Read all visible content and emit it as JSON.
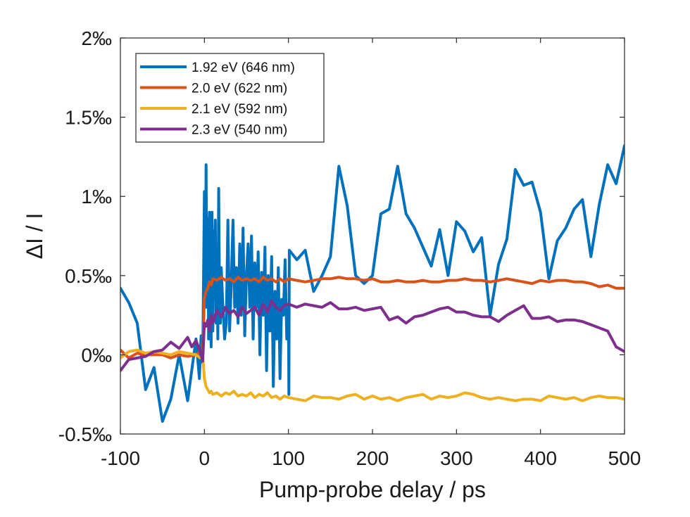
{
  "chart_data": {
    "type": "line",
    "title": "",
    "xlabel": "Pump-probe delay / ps",
    "ylabel": "ΔI / I",
    "xlim": [
      -100,
      500
    ],
    "ylim": [
      -0.5,
      2
    ],
    "xticks": [
      -100,
      0,
      100,
      200,
      300,
      400,
      500
    ],
    "xtick_labels": [
      "-100",
      "0",
      "100",
      "200",
      "300",
      "400",
      "500"
    ],
    "yticks": [
      -0.5,
      0,
      0.5,
      1,
      1.5,
      2
    ],
    "ytick_labels": [
      "-0.5‰",
      "0‰",
      "0.5‰",
      "1‰",
      "1.5‰",
      "2‰"
    ],
    "grid": false,
    "legend_position": "top-left",
    "series": [
      {
        "name": "1.92 eV (646 nm)",
        "color": "#0072BD",
        "x": [
          -100,
          -90,
          -80,
          -70,
          -60,
          -50,
          -40,
          -30,
          -20,
          -10,
          -6,
          -4,
          -2,
          0,
          1,
          2,
          3,
          4,
          5,
          6,
          7,
          8,
          9,
          10,
          11,
          12,
          13,
          14,
          15,
          16,
          17,
          18,
          19,
          20,
          22,
          24,
          26,
          28,
          30,
          32,
          34,
          36,
          38,
          40,
          42,
          44,
          46,
          48,
          50,
          52,
          54,
          56,
          58,
          60,
          62,
          64,
          66,
          68,
          70,
          72,
          74,
          76,
          78,
          80,
          82,
          84,
          86,
          88,
          90,
          92,
          94,
          96,
          98,
          100,
          100.5,
          101,
          110,
          120,
          130,
          140,
          150,
          160,
          170,
          180,
          190,
          200,
          210,
          220,
          230,
          240,
          250,
          260,
          270,
          280,
          290,
          300,
          310,
          320,
          330,
          340,
          350,
          360,
          370,
          380,
          390,
          400,
          410,
          420,
          430,
          440,
          450,
          460,
          470,
          480,
          490,
          500
        ],
        "values": [
          0.42,
          0.33,
          0.2,
          -0.22,
          -0.08,
          -0.42,
          -0.28,
          0.0,
          -0.29,
          0.1,
          -0.15,
          0.12,
          -0.05,
          1.03,
          0.3,
          1.2,
          0.3,
          0.86,
          0.1,
          0.9,
          0.4,
          0.05,
          0.9,
          0.15,
          0.78,
          0.6,
          0.85,
          0.2,
          0.62,
          0.1,
          1.05,
          0.35,
          0.2,
          0.55,
          0.3,
          0.1,
          0.2,
          0.85,
          0.15,
          0.45,
          0.85,
          0.3,
          0.55,
          0.2,
          0.7,
          0.25,
          0.8,
          0.12,
          0.5,
          0.7,
          0.3,
          0.75,
          0.1,
          0.58,
          0.3,
          0.65,
          0.0,
          0.52,
          0.25,
          0.68,
          -0.1,
          0.5,
          0.15,
          0.62,
          -0.2,
          0.4,
          0.1,
          0.55,
          -0.15,
          0.35,
          0.25,
          0.6,
          0.1,
          0.3,
          -0.25,
          0.66,
          0.6,
          0.66,
          0.4,
          0.5,
          0.62,
          1.19,
          0.94,
          0.5,
          0.45,
          0.5,
          0.89,
          0.92,
          1.19,
          0.89,
          0.8,
          0.68,
          0.56,
          0.79,
          0.5,
          0.84,
          0.78,
          0.65,
          0.74,
          0.25,
          0.57,
          0.73,
          1.17,
          1.07,
          1.09,
          0.9,
          0.48,
          0.72,
          0.8,
          0.92,
          0.98,
          0.62,
          0.95,
          1.2,
          1.08,
          1.32
        ]
      },
      {
        "name": "2.0 eV (622 nm)",
        "color": "#D95319",
        "x": [
          -100,
          -90,
          -80,
          -70,
          -60,
          -50,
          -40,
          -30,
          -20,
          -10,
          -5,
          -2,
          0,
          2,
          4,
          6,
          8,
          10,
          15,
          20,
          25,
          30,
          35,
          40,
          45,
          50,
          55,
          60,
          65,
          70,
          75,
          80,
          85,
          90,
          95,
          100,
          110,
          120,
          130,
          140,
          150,
          160,
          170,
          180,
          190,
          200,
          210,
          220,
          230,
          240,
          250,
          260,
          270,
          280,
          290,
          300,
          310,
          320,
          330,
          340,
          350,
          360,
          370,
          380,
          390,
          400,
          410,
          420,
          430,
          440,
          450,
          460,
          470,
          480,
          490,
          500
        ],
        "values": [
          0.03,
          -0.02,
          0.01,
          0.0,
          0.0,
          0.0,
          -0.02,
          0.0,
          -0.01,
          0.0,
          0.02,
          0.0,
          0.36,
          0.4,
          0.42,
          0.46,
          0.44,
          0.48,
          0.47,
          0.49,
          0.47,
          0.48,
          0.46,
          0.49,
          0.47,
          0.48,
          0.47,
          0.48,
          0.46,
          0.49,
          0.47,
          0.48,
          0.46,
          0.48,
          0.46,
          0.48,
          0.47,
          0.46,
          0.47,
          0.48,
          0.48,
          0.49,
          0.48,
          0.48,
          0.47,
          0.48,
          0.46,
          0.46,
          0.47,
          0.46,
          0.46,
          0.47,
          0.46,
          0.46,
          0.47,
          0.47,
          0.48,
          0.47,
          0.47,
          0.46,
          0.47,
          0.48,
          0.47,
          0.46,
          0.45,
          0.47,
          0.46,
          0.47,
          0.47,
          0.46,
          0.46,
          0.45,
          0.43,
          0.44,
          0.42,
          0.42
        ]
      },
      {
        "name": "2.1 eV (592 nm)",
        "color": "#EDB120",
        "x": [
          -100,
          -90,
          -80,
          -70,
          -60,
          -50,
          -40,
          -30,
          -20,
          -10,
          -5,
          -2,
          0,
          2,
          4,
          6,
          8,
          10,
          15,
          20,
          25,
          30,
          35,
          40,
          45,
          50,
          55,
          60,
          65,
          70,
          75,
          80,
          85,
          90,
          95,
          100,
          110,
          120,
          130,
          140,
          150,
          160,
          170,
          180,
          190,
          200,
          210,
          220,
          230,
          240,
          250,
          260,
          270,
          280,
          290,
          300,
          310,
          320,
          330,
          340,
          350,
          360,
          370,
          380,
          390,
          400,
          410,
          420,
          430,
          440,
          450,
          460,
          470,
          480,
          490,
          500
        ],
        "values": [
          -0.02,
          0.02,
          0.03,
          0.01,
          0.02,
          0.01,
          0.0,
          0.02,
          0.01,
          0.0,
          -0.02,
          0.0,
          -0.15,
          -0.2,
          -0.22,
          -0.24,
          -0.23,
          -0.25,
          -0.24,
          -0.26,
          -0.24,
          -0.25,
          -0.23,
          -0.26,
          -0.25,
          -0.26,
          -0.24,
          -0.27,
          -0.25,
          -0.26,
          -0.24,
          -0.27,
          -0.26,
          -0.28,
          -0.26,
          -0.27,
          -0.28,
          -0.29,
          -0.26,
          -0.27,
          -0.27,
          -0.28,
          -0.26,
          -0.25,
          -0.28,
          -0.26,
          -0.28,
          -0.27,
          -0.29,
          -0.27,
          -0.26,
          -0.25,
          -0.28,
          -0.26,
          -0.27,
          -0.26,
          -0.24,
          -0.25,
          -0.27,
          -0.28,
          -0.27,
          -0.28,
          -0.29,
          -0.28,
          -0.28,
          -0.29,
          -0.26,
          -0.27,
          -0.28,
          -0.27,
          -0.29,
          -0.27,
          -0.26,
          -0.27,
          -0.27,
          -0.28
        ]
      },
      {
        "name": "2.3 eV (540 nm)",
        "color": "#7E2F8E",
        "x": [
          -100,
          -90,
          -80,
          -70,
          -60,
          -50,
          -40,
          -30,
          -20,
          -15,
          -10,
          -5,
          -2,
          0,
          2,
          4,
          6,
          8,
          10,
          15,
          20,
          25,
          30,
          35,
          40,
          45,
          50,
          55,
          60,
          65,
          70,
          75,
          80,
          85,
          90,
          95,
          100,
          110,
          120,
          130,
          140,
          150,
          160,
          170,
          180,
          190,
          200,
          210,
          220,
          230,
          240,
          250,
          260,
          270,
          280,
          290,
          300,
          310,
          320,
          330,
          340,
          350,
          360,
          370,
          380,
          390,
          400,
          410,
          420,
          430,
          440,
          450,
          460,
          470,
          480,
          490,
          500
        ],
        "values": [
          -0.1,
          -0.03,
          -0.02,
          -0.01,
          0.02,
          0.03,
          0.08,
          0.04,
          0.11,
          0.05,
          0.09,
          0.02,
          -0.04,
          0.2,
          0.18,
          0.22,
          0.15,
          0.25,
          0.2,
          0.28,
          0.24,
          0.3,
          0.26,
          0.28,
          0.24,
          0.3,
          0.26,
          0.28,
          0.3,
          0.25,
          0.32,
          0.27,
          0.34,
          0.3,
          0.28,
          0.31,
          0.32,
          0.3,
          0.32,
          0.31,
          0.3,
          0.33,
          0.29,
          0.29,
          0.3,
          0.28,
          0.29,
          0.3,
          0.22,
          0.24,
          0.2,
          0.24,
          0.25,
          0.27,
          0.29,
          0.3,
          0.27,
          0.27,
          0.25,
          0.24,
          0.24,
          0.21,
          0.25,
          0.28,
          0.31,
          0.23,
          0.23,
          0.24,
          0.21,
          0.22,
          0.22,
          0.21,
          0.19,
          0.17,
          0.15,
          0.05,
          0.02
        ]
      }
    ]
  }
}
